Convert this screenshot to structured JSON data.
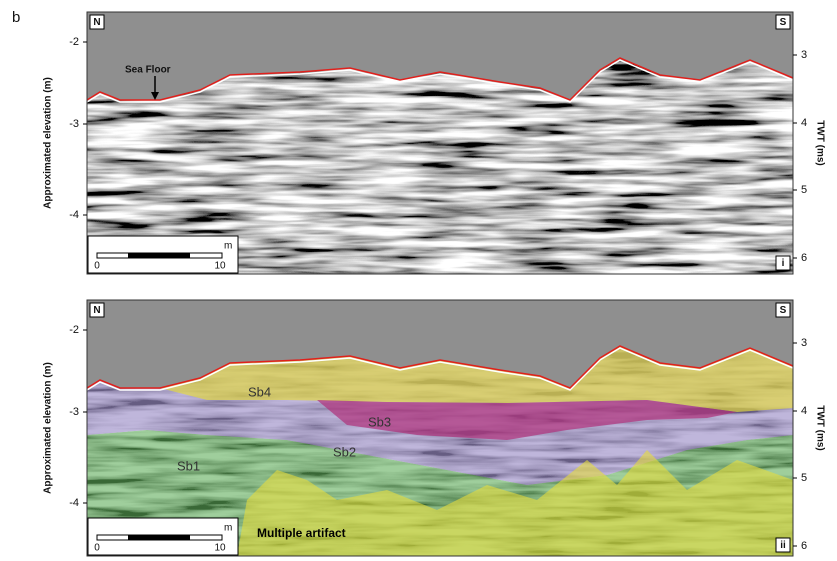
{
  "label": "b",
  "panels": [
    {
      "north": "N",
      "south": "S",
      "y_axis_label": "Approximated elevation (m)",
      "y_ticks": [
        "-2",
        "-3",
        "-4"
      ],
      "y2_axis_label": "TWT (ms)",
      "y2_ticks": [
        "3",
        "4",
        "5",
        "6"
      ],
      "scale_bar": {
        "ticks": [
          "0",
          "10"
        ],
        "unit": "m"
      },
      "id": "i",
      "annotations": [
        "Sea Floor"
      ]
    },
    {
      "north": "N",
      "south": "S",
      "y_axis_label": "Approximated elevation (m)",
      "y_ticks": [
        "-2",
        "-3",
        "-4"
      ],
      "y2_axis_label": "TWT (ms)",
      "y2_ticks": [
        "3",
        "4",
        "5",
        "6"
      ],
      "scale_bar": {
        "ticks": [
          "0",
          "10"
        ],
        "unit": "m"
      },
      "id": "ii",
      "annotations": [
        "Sb4",
        "Sb3",
        "Sb2",
        "Sb1",
        "Multiple artifact"
      ]
    }
  ]
}
